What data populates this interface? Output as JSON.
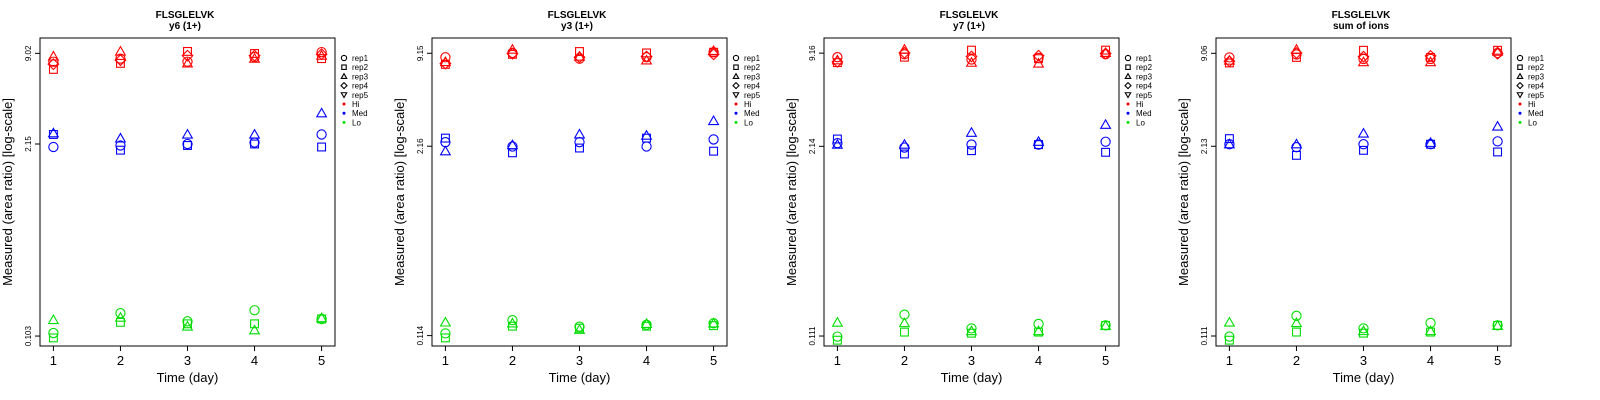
{
  "chart_data": [
    {
      "type": "scatter",
      "title": "FLSGLELVK",
      "subtitle": "y6 (1+)",
      "xlabel": "Time (day)",
      "ylabel": "Measured (area ratio) [log-scale]",
      "x_ticks": [
        "1",
        "2",
        "3",
        "4",
        "5"
      ],
      "y_ticks": [
        "0.103",
        "2.15",
        "9.02"
      ],
      "y_scale": "log",
      "xlim": [
        0.8,
        5.2
      ],
      "ylim": [
        0.088,
        11.5
      ],
      "legend_position": "right",
      "legend": {
        "shapes": [
          {
            "label": "rep1",
            "marker": "circle"
          },
          {
            "label": "rep2",
            "marker": "square"
          },
          {
            "label": "rep3",
            "marker": "triangle-up"
          },
          {
            "label": "rep4",
            "marker": "diamond"
          },
          {
            "label": "rep5",
            "marker": "triangle-down"
          }
        ],
        "colors": [
          {
            "label": "Hi",
            "color": "#ff0000"
          },
          {
            "label": "Med",
            "color": "#0000ff"
          },
          {
            "label": "Lo",
            "color": "#00dd00"
          }
        ]
      },
      "series": [
        {
          "group": "Hi",
          "marker": "circle",
          "x": [
            1,
            2,
            3,
            4,
            5
          ],
          "y": [
            7.9,
            8.3,
            7.9,
            8.5,
            9.2
          ]
        },
        {
          "group": "Hi",
          "marker": "square",
          "x": [
            1,
            2,
            3,
            4,
            5
          ],
          "y": [
            7.0,
            7.7,
            9.3,
            9.0,
            8.3
          ]
        },
        {
          "group": "Hi",
          "marker": "triangle-up",
          "x": [
            1,
            2,
            3,
            4,
            5
          ],
          "y": [
            8.6,
            9.3,
            7.7,
            8.3,
            8.7
          ]
        },
        {
          "group": "Hi",
          "marker": "diamond",
          "x": [
            1,
            2,
            3,
            4,
            5
          ],
          "y": [
            7.6,
            8.1,
            8.7,
            8.7,
            8.9
          ]
        },
        {
          "group": "Med",
          "marker": "circle",
          "x": [
            1,
            2,
            3,
            4,
            5
          ],
          "y": [
            2.05,
            2.1,
            2.15,
            2.2,
            2.5
          ]
        },
        {
          "group": "Med",
          "marker": "square",
          "x": [
            1,
            2,
            3,
            4,
            5
          ],
          "y": [
            2.5,
            1.95,
            2.1,
            2.15,
            2.05
          ]
        },
        {
          "group": "Med",
          "marker": "triangle-up",
          "x": [
            1,
            2,
            3,
            4,
            5
          ],
          "y": [
            2.55,
            2.35,
            2.5,
            2.5,
            3.5
          ]
        },
        {
          "group": "Lo",
          "marker": "circle",
          "x": [
            1,
            2,
            3,
            4,
            5
          ],
          "y": [
            0.108,
            0.148,
            0.13,
            0.155,
            0.135
          ]
        },
        {
          "group": "Lo",
          "marker": "square",
          "x": [
            1,
            2,
            3,
            4,
            5
          ],
          "y": [
            0.1,
            0.128,
            0.125,
            0.125,
            0.135
          ]
        },
        {
          "group": "Lo",
          "marker": "triangle-up",
          "x": [
            1,
            2,
            3,
            4,
            5
          ],
          "y": [
            0.133,
            0.138,
            0.12,
            0.113,
            0.137
          ]
        }
      ]
    },
    {
      "type": "scatter",
      "title": "FLSGLELVK",
      "subtitle": "y3 (1+)",
      "xlabel": "Time (day)",
      "ylabel": "Measured (area ratio) [log-scale]",
      "x_ticks": [
        "1",
        "2",
        "3",
        "4",
        "5"
      ],
      "y_ticks": [
        "0.114",
        "2.16",
        "9.15"
      ],
      "y_scale": "log",
      "xlim": [
        0.8,
        5.2
      ],
      "ylim": [
        0.097,
        11.6
      ],
      "legend_position": "right",
      "legend": {
        "shapes": [
          {
            "label": "rep1",
            "marker": "circle"
          },
          {
            "label": "rep2",
            "marker": "square"
          },
          {
            "label": "rep3",
            "marker": "triangle-up"
          },
          {
            "label": "rep4",
            "marker": "diamond"
          },
          {
            "label": "rep5",
            "marker": "triangle-down"
          }
        ],
        "colors": [
          {
            "label": "Hi",
            "color": "#ff0000"
          },
          {
            "label": "Med",
            "color": "#0000ff"
          },
          {
            "label": "Lo",
            "color": "#00dd00"
          }
        ]
      },
      "series": [
        {
          "group": "Hi",
          "marker": "circle",
          "x": [
            1,
            2,
            3,
            4,
            5
          ],
          "y": [
            8.6,
            9.2,
            8.4,
            8.6,
            9.3
          ]
        },
        {
          "group": "Hi",
          "marker": "square",
          "x": [
            1,
            2,
            3,
            4,
            5
          ],
          "y": [
            7.7,
            9.0,
            9.4,
            9.2,
            9.3
          ]
        },
        {
          "group": "Hi",
          "marker": "triangle-up",
          "x": [
            1,
            2,
            3,
            4,
            5
          ],
          "y": [
            8.0,
            9.7,
            8.7,
            8.2,
            9.5
          ]
        },
        {
          "group": "Hi",
          "marker": "diamond",
          "x": [
            1,
            2,
            3,
            4,
            5
          ],
          "y": [
            7.8,
            9.1,
            8.6,
            8.7,
            9.0
          ]
        },
        {
          "group": "Med",
          "marker": "circle",
          "x": [
            1,
            2,
            3,
            4,
            5
          ],
          "y": [
            2.3,
            2.15,
            2.3,
            2.15,
            2.4
          ]
        },
        {
          "group": "Med",
          "marker": "square",
          "x": [
            1,
            2,
            3,
            4,
            5
          ],
          "y": [
            2.45,
            1.95,
            2.1,
            2.45,
            2.0
          ]
        },
        {
          "group": "Med",
          "marker": "triangle-up",
          "x": [
            1,
            2,
            3,
            4,
            5
          ],
          "y": [
            2.0,
            2.2,
            2.6,
            2.55,
            3.2
          ]
        },
        {
          "group": "Lo",
          "marker": "circle",
          "x": [
            1,
            2,
            3,
            4,
            5
          ],
          "y": [
            0.118,
            0.145,
            0.131,
            0.135,
            0.138
          ]
        },
        {
          "group": "Lo",
          "marker": "square",
          "x": [
            1,
            2,
            3,
            4,
            5
          ],
          "y": [
            0.11,
            0.132,
            0.128,
            0.132,
            0.133
          ]
        },
        {
          "group": "Lo",
          "marker": "triangle-up",
          "x": [
            1,
            2,
            3,
            4,
            5
          ],
          "y": [
            0.14,
            0.138,
            0.125,
            0.137,
            0.138
          ]
        }
      ]
    },
    {
      "type": "scatter",
      "title": "FLSGLELVK",
      "subtitle": "y7 (1+)",
      "xlabel": "Time (day)",
      "ylabel": "Measured (area ratio) [log-scale]",
      "x_ticks": [
        "1",
        "2",
        "3",
        "4",
        "5"
      ],
      "y_ticks": [
        "0.111",
        "2.14",
        "9.16"
      ],
      "y_scale": "log",
      "xlim": [
        0.8,
        5.2
      ],
      "ylim": [
        0.095,
        11.6
      ],
      "legend_position": "right",
      "legend": {
        "shapes": [
          {
            "label": "rep1",
            "marker": "circle"
          },
          {
            "label": "rep2",
            "marker": "square"
          },
          {
            "label": "rep3",
            "marker": "triangle-up"
          },
          {
            "label": "rep4",
            "marker": "diamond"
          },
          {
            "label": "rep5",
            "marker": "triangle-down"
          }
        ],
        "colors": [
          {
            "label": "Hi",
            "color": "#ff0000"
          },
          {
            "label": "Med",
            "color": "#0000ff"
          },
          {
            "label": "Lo",
            "color": "#00dd00"
          }
        ]
      },
      "series": [
        {
          "group": "Hi",
          "marker": "circle",
          "x": [
            1,
            2,
            3,
            4,
            5
          ],
          "y": [
            8.6,
            9.0,
            8.3,
            8.5,
            9.0
          ]
        },
        {
          "group": "Hi",
          "marker": "square",
          "x": [
            1,
            2,
            3,
            4,
            5
          ],
          "y": [
            7.9,
            8.6,
            9.6,
            8.4,
            9.6
          ]
        },
        {
          "group": "Hi",
          "marker": "triangle-up",
          "x": [
            1,
            2,
            3,
            4,
            5
          ],
          "y": [
            8.2,
            9.7,
            7.9,
            7.8,
            9.2
          ]
        },
        {
          "group": "Hi",
          "marker": "diamond",
          "x": [
            1,
            2,
            3,
            4,
            5
          ],
          "y": [
            8.0,
            9.2,
            8.7,
            8.8,
            9.1
          ]
        },
        {
          "group": "Med",
          "marker": "circle",
          "x": [
            1,
            2,
            3,
            4,
            5
          ],
          "y": [
            2.25,
            2.1,
            2.2,
            2.2,
            2.3
          ]
        },
        {
          "group": "Med",
          "marker": "square",
          "x": [
            1,
            2,
            3,
            4,
            5
          ],
          "y": [
            2.4,
            1.9,
            2.0,
            2.2,
            1.95
          ]
        },
        {
          "group": "Med",
          "marker": "triangle-up",
          "x": [
            1,
            2,
            3,
            4,
            5
          ],
          "y": [
            2.2,
            2.2,
            2.65,
            2.3,
            3.0
          ]
        },
        {
          "group": "Lo",
          "marker": "circle",
          "x": [
            1,
            2,
            3,
            4,
            5
          ],
          "y": [
            0.11,
            0.155,
            0.125,
            0.134,
            0.131
          ]
        },
        {
          "group": "Lo",
          "marker": "square",
          "x": [
            1,
            2,
            3,
            4,
            5
          ],
          "y": [
            0.104,
            0.118,
            0.116,
            0.118,
            0.131
          ]
        },
        {
          "group": "Lo",
          "marker": "triangle-up",
          "x": [
            1,
            2,
            3,
            4,
            5
          ],
          "y": [
            0.137,
            0.136,
            0.12,
            0.12,
            0.13
          ]
        }
      ]
    },
    {
      "type": "scatter",
      "title": "FLSGLELVK",
      "subtitle": "sum of ions",
      "xlabel": "Time (day)",
      "ylabel": "Measured (area ratio) [log-scale]",
      "x_ticks": [
        "1",
        "2",
        "3",
        "4",
        "5"
      ],
      "y_ticks": [
        "0.111",
        "2.13",
        "9.06"
      ],
      "y_scale": "log",
      "xlim": [
        0.8,
        5.2
      ],
      "ylim": [
        0.095,
        11.5
      ],
      "legend_position": "right",
      "legend": {
        "shapes": [
          {
            "label": "rep1",
            "marker": "circle"
          },
          {
            "label": "rep2",
            "marker": "square"
          },
          {
            "label": "rep3",
            "marker": "triangle-up"
          },
          {
            "label": "rep4",
            "marker": "diamond"
          },
          {
            "label": "rep5",
            "marker": "triangle-down"
          }
        ],
        "colors": [
          {
            "label": "Hi",
            "color": "#ff0000"
          },
          {
            "label": "Med",
            "color": "#0000ff"
          },
          {
            "label": "Lo",
            "color": "#00dd00"
          }
        ]
      },
      "series": [
        {
          "group": "Hi",
          "marker": "circle",
          "x": [
            1,
            2,
            3,
            4,
            5
          ],
          "y": [
            8.5,
            8.9,
            8.3,
            8.3,
            9.1
          ]
        },
        {
          "group": "Hi",
          "marker": "square",
          "x": [
            1,
            2,
            3,
            4,
            5
          ],
          "y": [
            7.8,
            8.5,
            9.5,
            8.5,
            9.5
          ]
        },
        {
          "group": "Hi",
          "marker": "triangle-up",
          "x": [
            1,
            2,
            3,
            4,
            5
          ],
          "y": [
            8.1,
            9.6,
            7.9,
            7.9,
            9.3
          ]
        },
        {
          "group": "Hi",
          "marker": "diamond",
          "x": [
            1,
            2,
            3,
            4,
            5
          ],
          "y": [
            8.0,
            9.1,
            8.6,
            8.7,
            9.0
          ]
        },
        {
          "group": "Med",
          "marker": "circle",
          "x": [
            1,
            2,
            3,
            4,
            5
          ],
          "y": [
            2.2,
            2.1,
            2.2,
            2.2,
            2.3
          ]
        },
        {
          "group": "Med",
          "marker": "square",
          "x": [
            1,
            2,
            3,
            4,
            5
          ],
          "y": [
            2.4,
            1.85,
            2.0,
            2.2,
            1.95
          ]
        },
        {
          "group": "Med",
          "marker": "triangle-up",
          "x": [
            1,
            2,
            3,
            4,
            5
          ],
          "y": [
            2.2,
            2.2,
            2.6,
            2.25,
            2.9
          ]
        },
        {
          "group": "Lo",
          "marker": "circle",
          "x": [
            1,
            2,
            3,
            4,
            5
          ],
          "y": [
            0.11,
            0.152,
            0.125,
            0.136,
            0.131
          ]
        },
        {
          "group": "Lo",
          "marker": "square",
          "x": [
            1,
            2,
            3,
            4,
            5
          ],
          "y": [
            0.104,
            0.118,
            0.116,
            0.118,
            0.131
          ]
        },
        {
          "group": "Lo",
          "marker": "triangle-up",
          "x": [
            1,
            2,
            3,
            4,
            5
          ],
          "y": [
            0.137,
            0.136,
            0.12,
            0.12,
            0.13
          ]
        }
      ]
    }
  ]
}
